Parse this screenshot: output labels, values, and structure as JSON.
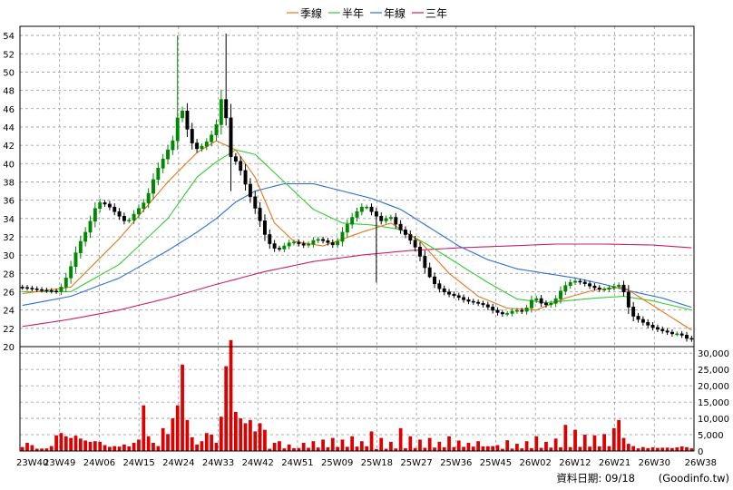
{
  "chart_data": {
    "type": "candlestick",
    "frequency": "weekly",
    "legend": {
      "placement": "top-center",
      "entries": [
        {
          "name": "季線",
          "color": "#e8751a"
        },
        {
          "name": "半年",
          "color": "#33cc33"
        },
        {
          "name": "年線",
          "color": "#2a6fd6"
        },
        {
          "name": "三年",
          "color": "#cc1f6a"
        }
      ]
    },
    "price_axis": {
      "ticks": [
        20,
        22,
        24,
        26,
        28,
        30,
        32,
        34,
        36,
        38,
        40,
        42,
        44,
        46,
        48,
        50,
        52,
        54
      ],
      "ylim": [
        20,
        55
      ]
    },
    "volume_axis": {
      "ticks": [
        "0",
        "5,000",
        "10,000",
        "15,000",
        "20,000",
        "25,000",
        "30,000"
      ],
      "ylim": [
        0,
        32000
      ]
    },
    "x_tick_labels": [
      "23W40",
      "23W49",
      "24W06",
      "24W15",
      "24W24",
      "24W33",
      "24W42",
      "24W51",
      "25W09",
      "25W18",
      "25W27",
      "25W36",
      "25W45",
      "26W02",
      "26W12",
      "26W21",
      "26W30",
      "26W38"
    ],
    "date_text": "資料日期: 09/18",
    "source_text": "(Goodinfo.tw)",
    "colors": {
      "up": "#ff0000",
      "down": "#000000",
      "up_fill": "#ffffff",
      "bull_candle": "#008800",
      "volume": "#dd0000",
      "grid": "#999999"
    },
    "price_points": [
      [
        0,
        26.5
      ],
      [
        4,
        26.2
      ],
      [
        8,
        26.0
      ],
      [
        10,
        28.0
      ],
      [
        12,
        31.0
      ],
      [
        14,
        33.0
      ],
      [
        16,
        35.8
      ],
      [
        18,
        35.5
      ],
      [
        20,
        34.5
      ],
      [
        22,
        33.5
      ],
      [
        24,
        34.8
      ],
      [
        26,
        36.0
      ],
      [
        28,
        39.0
      ],
      [
        30,
        41.0
      ],
      [
        32,
        43.0
      ],
      [
        33,
        47.0
      ],
      [
        34,
        44.5
      ],
      [
        36,
        41.5
      ],
      [
        38,
        42.0
      ],
      [
        40,
        43.5
      ],
      [
        41,
        45.0
      ],
      [
        42,
        49.0
      ],
      [
        43,
        41.0
      ],
      [
        45,
        40.0
      ],
      [
        47,
        37.0
      ],
      [
        49,
        34.5
      ],
      [
        51,
        31.5
      ],
      [
        53,
        30.5
      ],
      [
        56,
        31.5
      ],
      [
        59,
        31.0
      ],
      [
        61,
        31.8
      ],
      [
        63,
        31.5
      ],
      [
        65,
        31.0
      ],
      [
        67,
        33.0
      ],
      [
        69,
        34.5
      ],
      [
        71,
        35.5
      ],
      [
        73,
        34.5
      ],
      [
        75,
        33.5
      ],
      [
        76,
        34.5
      ],
      [
        78,
        33.0
      ],
      [
        80,
        32.0
      ],
      [
        82,
        30.5
      ],
      [
        84,
        28.0
      ],
      [
        86,
        26.5
      ],
      [
        88,
        25.8
      ],
      [
        90,
        25.5
      ],
      [
        92,
        25.0
      ],
      [
        94,
        24.8
      ],
      [
        96,
        24.5
      ],
      [
        98,
        23.8
      ],
      [
        100,
        23.5
      ],
      [
        102,
        24.0
      ],
      [
        104,
        23.8
      ],
      [
        106,
        25.5
      ],
      [
        108,
        24.5
      ],
      [
        110,
        24.8
      ],
      [
        112,
        26.5
      ],
      [
        114,
        27.2
      ],
      [
        116,
        27.0
      ],
      [
        118,
        26.5
      ],
      [
        120,
        26.2
      ],
      [
        122,
        26.5
      ],
      [
        124,
        26.8
      ],
      [
        126,
        23.5
      ],
      [
        128,
        22.8
      ],
      [
        130,
        22.2
      ],
      [
        132,
        21.8
      ],
      [
        134,
        21.5
      ],
      [
        135,
        21.3
      ],
      [
        136,
        21.5
      ],
      [
        137,
        21.0
      ],
      [
        138,
        20.8
      ]
    ],
    "ma_quarter": [
      [
        0,
        25.8
      ],
      [
        10,
        26.5
      ],
      [
        20,
        31.8
      ],
      [
        30,
        38.0
      ],
      [
        36,
        41.2
      ],
      [
        40,
        42.5
      ],
      [
        44,
        41.5
      ],
      [
        48,
        38.5
      ],
      [
        52,
        33.5
      ],
      [
        56,
        31.5
      ],
      [
        62,
        31.0
      ],
      [
        70,
        32.5
      ],
      [
        76,
        33.5
      ],
      [
        82,
        31.5
      ],
      [
        88,
        28.0
      ],
      [
        94,
        25.5
      ],
      [
        100,
        24.2
      ],
      [
        106,
        24.0
      ],
      [
        112,
        25.3
      ],
      [
        118,
        26.2
      ],
      [
        124,
        26.5
      ],
      [
        130,
        24.5
      ],
      [
        138,
        21.8
      ]
    ],
    "ma_half": [
      [
        0,
        26.0
      ],
      [
        10,
        26.0
      ],
      [
        20,
        29.0
      ],
      [
        30,
        34.0
      ],
      [
        36,
        38.5
      ],
      [
        40,
        40.2
      ],
      [
        44,
        41.5
      ],
      [
        48,
        41.0
      ],
      [
        54,
        38.0
      ],
      [
        60,
        35.0
      ],
      [
        66,
        33.5
      ],
      [
        72,
        33.3
      ],
      [
        78,
        32.8
      ],
      [
        84,
        31.0
      ],
      [
        90,
        29.0
      ],
      [
        96,
        27.0
      ],
      [
        102,
        25.2
      ],
      [
        108,
        24.8
      ],
      [
        112,
        25.0
      ],
      [
        118,
        25.3
      ],
      [
        124,
        25.5
      ],
      [
        130,
        25.0
      ],
      [
        138,
        24.0
      ]
    ],
    "ma_year": [
      [
        0,
        24.5
      ],
      [
        10,
        25.5
      ],
      [
        20,
        27.5
      ],
      [
        30,
        30.5
      ],
      [
        36,
        32.5
      ],
      [
        40,
        34.0
      ],
      [
        44,
        35.8
      ],
      [
        48,
        37.0
      ],
      [
        54,
        37.8
      ],
      [
        60,
        37.8
      ],
      [
        66,
        37.0
      ],
      [
        72,
        36.2
      ],
      [
        78,
        35.0
      ],
      [
        84,
        33.0
      ],
      [
        90,
        31.0
      ],
      [
        96,
        29.5
      ],
      [
        102,
        28.5
      ],
      [
        108,
        28.0
      ],
      [
        114,
        27.5
      ],
      [
        120,
        26.8
      ],
      [
        126,
        26.0
      ],
      [
        132,
        25.3
      ],
      [
        138,
        24.3
      ]
    ],
    "ma_three_year": [
      [
        0,
        22.2
      ],
      [
        10,
        23.0
      ],
      [
        20,
        24.0
      ],
      [
        30,
        25.3
      ],
      [
        40,
        26.8
      ],
      [
        50,
        28.2
      ],
      [
        60,
        29.3
      ],
      [
        70,
        30.0
      ],
      [
        80,
        30.5
      ],
      [
        90,
        30.8
      ],
      [
        100,
        31.0
      ],
      [
        110,
        31.2
      ],
      [
        120,
        31.2
      ],
      [
        130,
        31.1
      ],
      [
        138,
        30.8
      ]
    ],
    "volume_bars": [
      [
        0,
        1200
      ],
      [
        1,
        2500
      ],
      [
        2,
        1800
      ],
      [
        6,
        1500
      ],
      [
        7,
        4800
      ],
      [
        8,
        5500
      ],
      [
        9,
        4500
      ],
      [
        10,
        4000
      ],
      [
        11,
        4700
      ],
      [
        12,
        3800
      ],
      [
        13,
        3200
      ],
      [
        14,
        2800
      ],
      [
        15,
        3000
      ],
      [
        16,
        2800
      ],
      [
        17,
        1800
      ],
      [
        19,
        1500
      ],
      [
        21,
        2000
      ],
      [
        23,
        2500
      ],
      [
        24,
        3500
      ],
      [
        25,
        14000
      ],
      [
        26,
        4500
      ],
      [
        27,
        2500
      ],
      [
        28,
        1500
      ],
      [
        29,
        7000
      ],
      [
        30,
        5200
      ],
      [
        31,
        10000
      ],
      [
        32,
        14000
      ],
      [
        33,
        26500
      ],
      [
        34,
        9500
      ],
      [
        35,
        4200
      ],
      [
        36,
        2000
      ],
      [
        37,
        3000
      ],
      [
        38,
        5500
      ],
      [
        39,
        5000
      ],
      [
        40,
        2500
      ],
      [
        41,
        10500
      ],
      [
        42,
        26000
      ],
      [
        43,
        34000
      ],
      [
        44,
        12000
      ],
      [
        45,
        10000
      ],
      [
        46,
        8500
      ],
      [
        47,
        9500
      ],
      [
        48,
        6000
      ],
      [
        49,
        8500
      ],
      [
        50,
        6500
      ],
      [
        52,
        2500
      ],
      [
        53,
        3000
      ],
      [
        55,
        2000
      ],
      [
        58,
        2500
      ],
      [
        60,
        3000
      ],
      [
        62,
        3500
      ],
      [
        64,
        4000
      ],
      [
        66,
        3500
      ],
      [
        68,
        4500
      ],
      [
        70,
        3000
      ],
      [
        72,
        6000
      ],
      [
        74,
        4000
      ],
      [
        76,
        2800
      ],
      [
        78,
        7000
      ],
      [
        80,
        4500
      ],
      [
        82,
        3500
      ],
      [
        84,
        4000
      ],
      [
        86,
        2800
      ],
      [
        88,
        4500
      ],
      [
        90,
        3200
      ],
      [
        92,
        2500
      ],
      [
        94,
        3000
      ],
      [
        98,
        1800
      ],
      [
        100,
        3300
      ],
      [
        102,
        2200
      ],
      [
        104,
        3000
      ],
      [
        106,
        4500
      ],
      [
        108,
        2800
      ],
      [
        110,
        3800
      ],
      [
        112,
        8000
      ],
      [
        114,
        6500
      ],
      [
        116,
        5000
      ],
      [
        118,
        4800
      ],
      [
        120,
        5200
      ],
      [
        122,
        7000
      ],
      [
        123,
        9500
      ],
      [
        124,
        4000
      ],
      [
        125,
        2200
      ],
      [
        126,
        1500
      ],
      [
        128,
        1200
      ],
      [
        130,
        1100
      ],
      [
        132,
        1000
      ],
      [
        134,
        900
      ],
      [
        136,
        1400
      ],
      [
        138,
        800
      ]
    ]
  }
}
